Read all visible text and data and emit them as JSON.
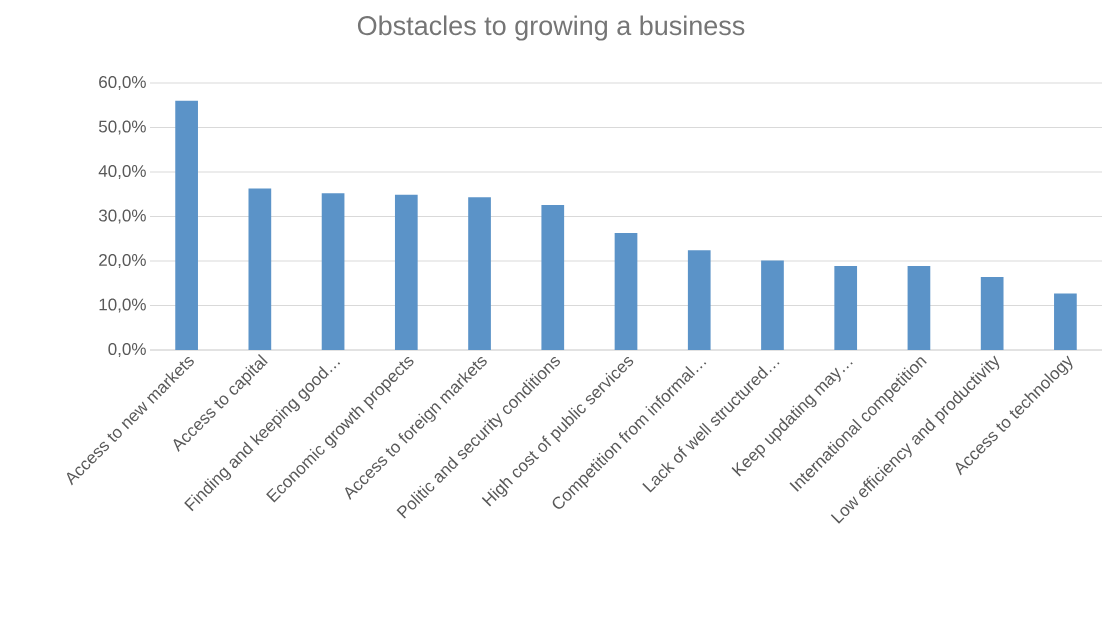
{
  "chart_data": {
    "type": "bar",
    "title": "Obstacles to growing a business",
    "categories": [
      "Access to new markets",
      "Access to capital",
      "Finding and keeping good…",
      "Economic growth propects",
      "Access to foreign markets",
      "Politic and security conditions",
      "High cost of public services",
      "Competition from informal…",
      "Lack of well structured…",
      "Keep updating may…",
      "International competition",
      "Low efficiency and productivity",
      "Access to technology"
    ],
    "values": [
      56.0,
      36.3,
      35.2,
      34.9,
      34.3,
      32.6,
      26.3,
      22.4,
      20.1,
      18.9,
      18.9,
      16.4,
      12.7
    ],
    "color": "#5b93c8",
    "ylim": [
      0,
      60
    ],
    "yticks": [
      {
        "value": 0,
        "label": "0,0%"
      },
      {
        "value": 10,
        "label": "10,0%"
      },
      {
        "value": 20,
        "label": "20,0%"
      },
      {
        "value": 30,
        "label": "30,0%"
      },
      {
        "value": 40,
        "label": "40,0%"
      },
      {
        "value": 50,
        "label": "50,0%"
      },
      {
        "value": 60,
        "label": "60,0%"
      }
    ],
    "grid": "y"
  }
}
